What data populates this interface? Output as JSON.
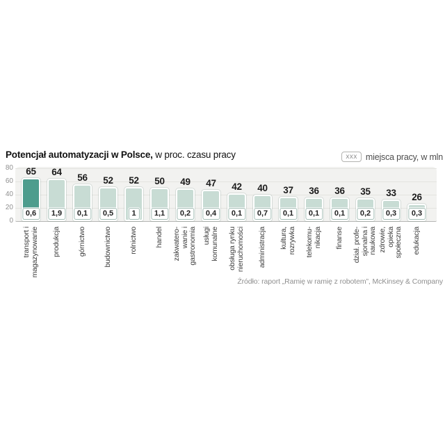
{
  "title": {
    "bold": "Potencjał automatyzacji  w Polsce,",
    "regular": " w proc. czasu pracy"
  },
  "legend": {
    "badge": "xxx",
    "label": "miejsca pracy, w mln"
  },
  "source": "Źródło: raport „Ramię w ramię z robotem”, McKinsey & Company",
  "colors": {
    "highlight_bar": "#4d9d8d",
    "bar": "#c8dcd4",
    "plot_background": "#f2f2f0",
    "gridline": "#e3e3df",
    "axis_line": "#b5b5b3"
  },
  "chart_data": {
    "type": "bar",
    "title": "Potencjał automatyzacji w Polsce, w proc. czasu pracy",
    "xlabel": "",
    "ylabel": "w proc. czasu pracy",
    "ylim": [
      0,
      80
    ],
    "yticks": [
      0,
      20,
      40,
      60,
      80
    ],
    "grid": true,
    "legend_position": "top-right",
    "categories": [
      "transport i magazynowanie",
      "produkcja",
      "górnictwo",
      "budownictwo",
      "rolnictwo",
      "handel",
      "zakwaterowanie i gastronomia",
      "usługi komunalne",
      "obsługa rynku nieruchomości",
      "administracja",
      "kultura, rozrywka",
      "telekomunikacja",
      "finanse",
      "dział. profesjonalna i naukowa",
      "zdrowie, opieka społeczna",
      "edukacja"
    ],
    "series": [
      {
        "name": "potencjał automatyzacji, w proc. czasu pracy",
        "values": [
          65,
          64,
          56,
          52,
          52,
          50,
          49,
          47,
          42,
          40,
          37,
          36,
          36,
          35,
          33,
          26
        ]
      },
      {
        "name": "miejsca pracy, w mln",
        "values": [
          "0,6",
          "1,9",
          "0,1",
          "0,5",
          "1",
          "1,1",
          "0,2",
          "0,4",
          "0,1",
          "0,7",
          "0,1",
          "0,1",
          "0,1",
          "0,2",
          "0,3",
          "0,3"
        ]
      }
    ],
    "bars": [
      {
        "label_lines": [
          "transport i",
          "magazynowanie"
        ],
        "value": 65,
        "jobs_mln": "0,6",
        "highlight": true
      },
      {
        "label_lines": [
          "produkcja"
        ],
        "value": 64,
        "jobs_mln": "1,9",
        "highlight": false
      },
      {
        "label_lines": [
          "górnictwo"
        ],
        "value": 56,
        "jobs_mln": "0,1",
        "highlight": false
      },
      {
        "label_lines": [
          "budownictwo"
        ],
        "value": 52,
        "jobs_mln": "0,5",
        "highlight": false
      },
      {
        "label_lines": [
          "rolnictwo"
        ],
        "value": 52,
        "jobs_mln": "1",
        "highlight": false
      },
      {
        "label_lines": [
          "handel"
        ],
        "value": 50,
        "jobs_mln": "1,1",
        "highlight": false
      },
      {
        "label_lines": [
          "zakwatero-",
          "wanie i",
          "gastronomia"
        ],
        "value": 49,
        "jobs_mln": "0,2",
        "highlight": false
      },
      {
        "label_lines": [
          "usługi",
          "komunalne"
        ],
        "value": 47,
        "jobs_mln": "0,4",
        "highlight": false
      },
      {
        "label_lines": [
          "obsługa rynku",
          "nieruchomości"
        ],
        "value": 42,
        "jobs_mln": "0,1",
        "highlight": false
      },
      {
        "label_lines": [
          "administracja"
        ],
        "value": 40,
        "jobs_mln": "0,7",
        "highlight": false
      },
      {
        "label_lines": [
          "kultura,",
          "rozrywka"
        ],
        "value": 37,
        "jobs_mln": "0,1",
        "highlight": false
      },
      {
        "label_lines": [
          "telekomu-",
          "nikacja"
        ],
        "value": 36,
        "jobs_mln": "0,1",
        "highlight": false
      },
      {
        "label_lines": [
          "finanse"
        ],
        "value": 36,
        "jobs_mln": "0,1",
        "highlight": false
      },
      {
        "label_lines": [
          "dział. profe-",
          "sjonalna i",
          "naukowa"
        ],
        "value": 35,
        "jobs_mln": "0,2",
        "highlight": false
      },
      {
        "label_lines": [
          "zdrowie,",
          "opieka",
          "społeczna"
        ],
        "value": 33,
        "jobs_mln": "0,3",
        "highlight": false
      },
      {
        "label_lines": [
          "edukacja"
        ],
        "value": 26,
        "jobs_mln": "0,3",
        "highlight": false
      }
    ]
  }
}
